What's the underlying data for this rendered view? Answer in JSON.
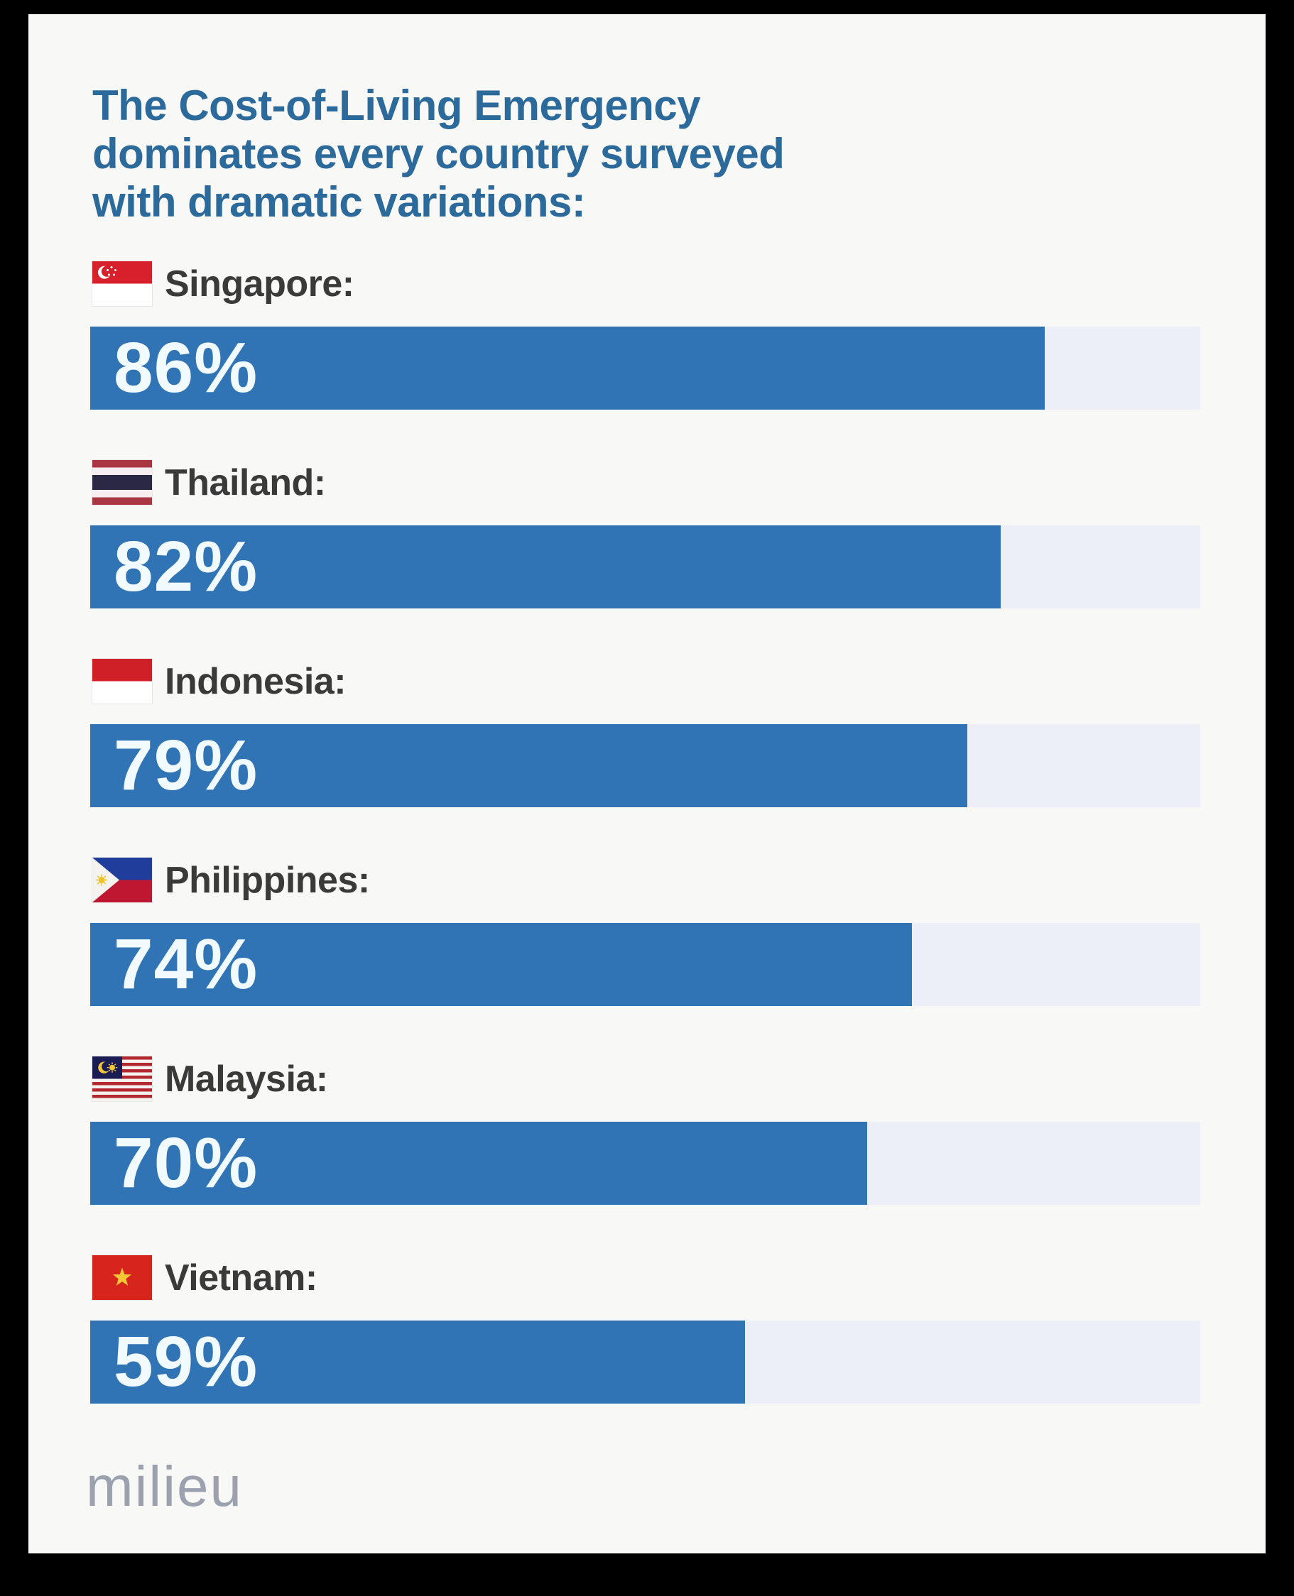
{
  "page": {
    "frame_background": "#000000",
    "card_background": "#f8f8f7"
  },
  "title_lines": [
    "The Cost-of-Living Emergency",
    "dominates every country surveyed",
    "with dramatic variations:"
  ],
  "colors": {
    "title_text": "#2b6a9a",
    "bar_fill": "#3174b5",
    "bar_track": "#eceff8",
    "label_text": "#3a3a3a",
    "value_text": "#f0faff",
    "logo_text": "#9ba1ae"
  },
  "logo_text": "milieu",
  "chart_data": {
    "type": "bar",
    "orientation": "horizontal",
    "title": "The Cost-of-Living Emergency dominates every country surveyed with dramatic variations:",
    "categories": [
      "Singapore",
      "Thailand",
      "Indonesia",
      "Philippines",
      "Malaysia",
      "Vietnam"
    ],
    "values": [
      86,
      82,
      79,
      74,
      70,
      59
    ],
    "unit": "%",
    "xlim": [
      0,
      100
    ],
    "grid": false,
    "legend": false,
    "rows": [
      {
        "label": "Singapore:",
        "value": 86,
        "value_label": "86%",
        "flag_icon": "singapore-flag-icon"
      },
      {
        "label": "Thailand:",
        "value": 82,
        "value_label": "82%",
        "flag_icon": "thailand-flag-icon"
      },
      {
        "label": "Indonesia:",
        "value": 79,
        "value_label": "79%",
        "flag_icon": "indonesia-flag-icon"
      },
      {
        "label": "Philippines:",
        "value": 74,
        "value_label": "74%",
        "flag_icon": "philippines-flag-icon"
      },
      {
        "label": "Malaysia:",
        "value": 70,
        "value_label": "70%",
        "flag_icon": "malaysia-flag-icon"
      },
      {
        "label": "Vietnam:",
        "value": 59,
        "value_label": "59%",
        "flag_icon": "vietnam-flag-icon"
      }
    ]
  }
}
